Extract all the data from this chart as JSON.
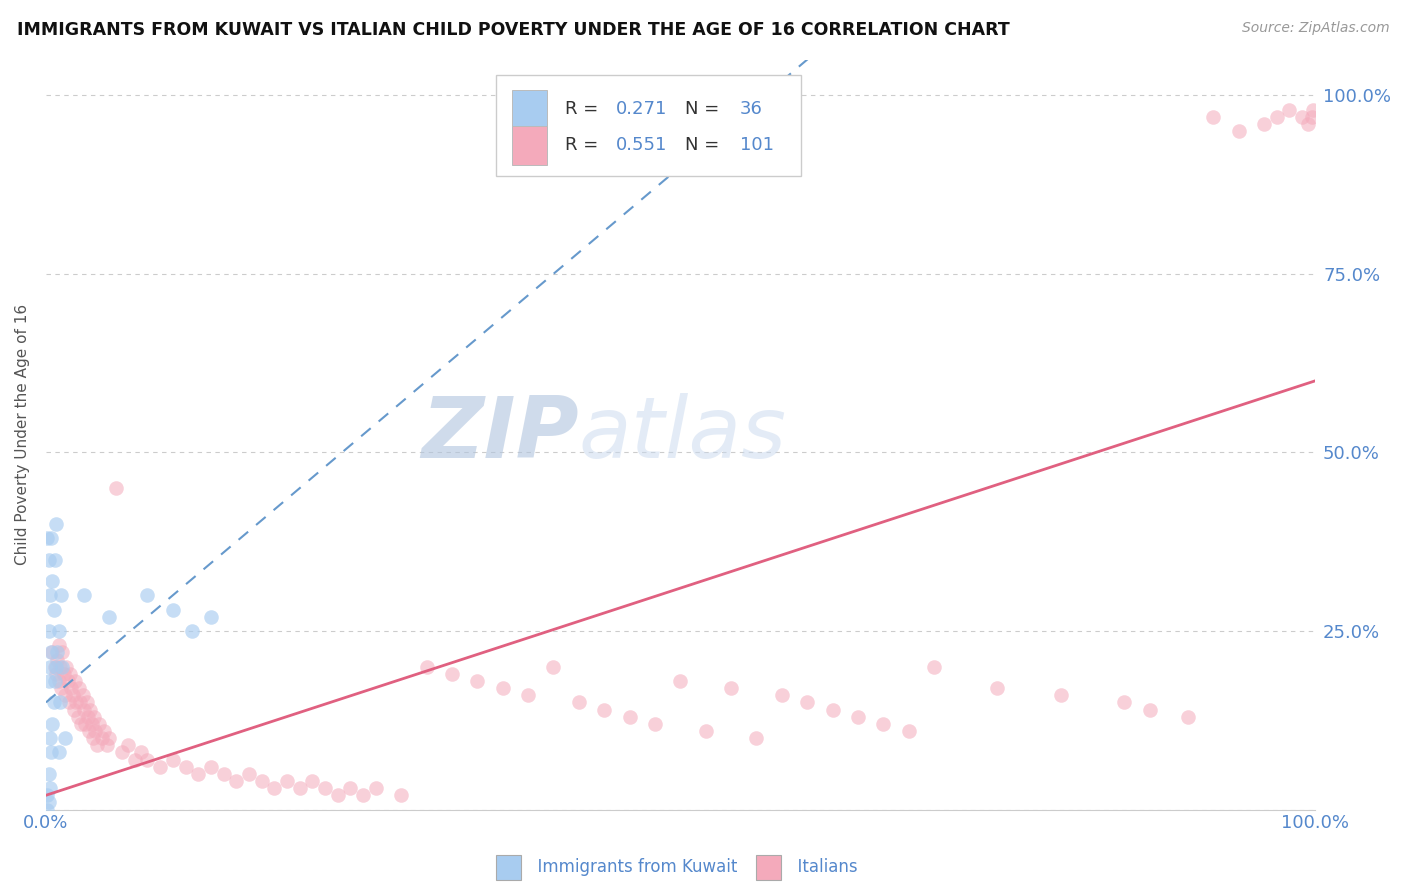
{
  "title": "IMMIGRANTS FROM KUWAIT VS ITALIAN CHILD POVERTY UNDER THE AGE OF 16 CORRELATION CHART",
  "source": "Source: ZipAtlas.com",
  "ylabel": "Child Poverty Under the Age of 16",
  "legend_label1": "Immigrants from Kuwait",
  "legend_label2": "Italians",
  "R1": 0.271,
  "N1": 36,
  "R2": 0.551,
  "N2": 101,
  "color_blue_fill": "#A8CCF0",
  "color_pink_fill": "#F4AABB",
  "color_blue_line": "#6699CC",
  "color_pink_line": "#E06080",
  "color_axis_label": "#5588CC",
  "watermark_color": "#C8D8E8",
  "background": "#FFFFFF",
  "xlim": [
    0.0,
    1.0
  ],
  "ylim": [
    0.0,
    1.05
  ],
  "yticks": [
    0.0,
    0.25,
    0.5,
    0.75,
    1.0
  ],
  "ytick_labels_right": [
    "",
    "25.0%",
    "50.0%",
    "75.0%",
    "100.0%"
  ],
  "xtick_left": "0.0%",
  "xtick_right": "100.0%",
  "blue_x": [
    0.001,
    0.001,
    0.001,
    0.002,
    0.002,
    0.002,
    0.002,
    0.002,
    0.003,
    0.003,
    0.003,
    0.003,
    0.004,
    0.004,
    0.004,
    0.005,
    0.005,
    0.006,
    0.006,
    0.007,
    0.007,
    0.008,
    0.008,
    0.009,
    0.01,
    0.01,
    0.011,
    0.012,
    0.013,
    0.015,
    0.03,
    0.05,
    0.08,
    0.1,
    0.115,
    0.13
  ],
  "blue_y": [
    0.0,
    0.02,
    0.38,
    0.01,
    0.05,
    0.18,
    0.25,
    0.35,
    0.03,
    0.1,
    0.2,
    0.3,
    0.08,
    0.22,
    0.38,
    0.12,
    0.32,
    0.15,
    0.28,
    0.18,
    0.35,
    0.2,
    0.4,
    0.22,
    0.08,
    0.25,
    0.15,
    0.3,
    0.2,
    0.1,
    0.3,
    0.27,
    0.3,
    0.28,
    0.25,
    0.27
  ],
  "pink_x": [
    0.005,
    0.007,
    0.008,
    0.009,
    0.01,
    0.01,
    0.011,
    0.012,
    0.013,
    0.014,
    0.015,
    0.016,
    0.017,
    0.018,
    0.019,
    0.02,
    0.021,
    0.022,
    0.023,
    0.024,
    0.025,
    0.026,
    0.027,
    0.028,
    0.029,
    0.03,
    0.031,
    0.032,
    0.033,
    0.034,
    0.035,
    0.036,
    0.037,
    0.038,
    0.039,
    0.04,
    0.042,
    0.044,
    0.046,
    0.048,
    0.05,
    0.055,
    0.06,
    0.065,
    0.07,
    0.075,
    0.08,
    0.09,
    0.1,
    0.11,
    0.12,
    0.13,
    0.14,
    0.15,
    0.16,
    0.17,
    0.18,
    0.19,
    0.2,
    0.21,
    0.22,
    0.23,
    0.24,
    0.25,
    0.26,
    0.28,
    0.3,
    0.32,
    0.34,
    0.36,
    0.38,
    0.4,
    0.42,
    0.44,
    0.46,
    0.48,
    0.5,
    0.52,
    0.54,
    0.56,
    0.58,
    0.6,
    0.62,
    0.64,
    0.66,
    0.68,
    0.7,
    0.75,
    0.8,
    0.85,
    0.87,
    0.9,
    0.92,
    0.94,
    0.96,
    0.97,
    0.98,
    0.99,
    0.995,
    0.998,
    0.999
  ],
  "pink_y": [
    0.22,
    0.2,
    0.19,
    0.21,
    0.18,
    0.23,
    0.2,
    0.17,
    0.22,
    0.19,
    0.16,
    0.2,
    0.18,
    0.15,
    0.19,
    0.17,
    0.16,
    0.14,
    0.18,
    0.15,
    0.13,
    0.17,
    0.15,
    0.12,
    0.16,
    0.14,
    0.12,
    0.15,
    0.13,
    0.11,
    0.14,
    0.12,
    0.1,
    0.13,
    0.11,
    0.09,
    0.12,
    0.1,
    0.11,
    0.09,
    0.1,
    0.45,
    0.08,
    0.09,
    0.07,
    0.08,
    0.07,
    0.06,
    0.07,
    0.06,
    0.05,
    0.06,
    0.05,
    0.04,
    0.05,
    0.04,
    0.03,
    0.04,
    0.03,
    0.04,
    0.03,
    0.02,
    0.03,
    0.02,
    0.03,
    0.02,
    0.2,
    0.19,
    0.18,
    0.17,
    0.16,
    0.2,
    0.15,
    0.14,
    0.13,
    0.12,
    0.18,
    0.11,
    0.17,
    0.1,
    0.16,
    0.15,
    0.14,
    0.13,
    0.12,
    0.11,
    0.2,
    0.17,
    0.16,
    0.15,
    0.14,
    0.13,
    0.97,
    0.95,
    0.96,
    0.97,
    0.98,
    0.97,
    0.96,
    0.97,
    0.98
  ]
}
